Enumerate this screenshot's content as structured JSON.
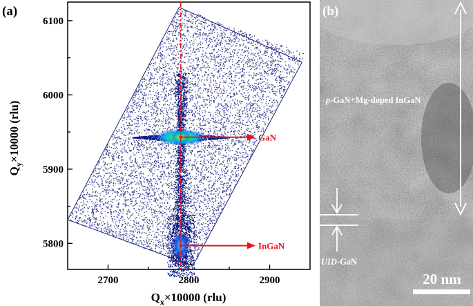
{
  "panel_a": {
    "label": "(a)",
    "chart_data": {
      "type": "scatter",
      "xlabel_main": "Q",
      "xlabel_sub": "x",
      "xlabel_rest": "×10000 (rlu)",
      "ylabel_main": "Q",
      "ylabel_sub": "y",
      "ylabel_rest": "×10000 (rlu)",
      "xlim": [
        2650,
        2950
      ],
      "ylim": [
        5765,
        6125
      ],
      "x_ticks": [
        2700,
        2800,
        2900
      ],
      "y_ticks": [
        5800,
        5900,
        6000,
        6100
      ],
      "scan_region_corners": [
        [
          2650,
          5832
        ],
        [
          2788,
          6118
        ],
        [
          2940,
          6044
        ],
        [
          2805,
          5770
        ]
      ],
      "reference_line_x": 2790,
      "peaks": [
        {
          "label": "GaN",
          "x": 2790,
          "y": 5943
        },
        {
          "label": "InGaN",
          "x": 2790,
          "y": 5797
        }
      ],
      "colors": {
        "points": "#1a237e",
        "arrow": "#e8141c",
        "peak_core": "#ffe600",
        "peak_halo": "#00c8ff"
      }
    }
  },
  "panel_b": {
    "label": "(b)",
    "layer_top": "p-GaN+Mg-doped InGaN",
    "layer_top_italic": "p",
    "layer_top_rest": "-GaN+Mg-doped InGaN",
    "layer_bottom_italic": "UID",
    "layer_bottom_rest": "-GaN",
    "scale_bar": "20 nm"
  }
}
